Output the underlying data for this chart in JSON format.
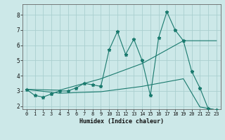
{
  "xlabel": "Humidex (Indice chaleur)",
  "bg_color": "#cce8e8",
  "line_color": "#1a7a6e",
  "grid_color": "#aacfcf",
  "xlim": [
    -0.5,
    23.5
  ],
  "ylim": [
    1.8,
    8.7
  ],
  "yticks": [
    2,
    3,
    4,
    5,
    6,
    7,
    8
  ],
  "xticks": [
    0,
    1,
    2,
    3,
    4,
    5,
    6,
    7,
    8,
    9,
    10,
    11,
    12,
    13,
    14,
    15,
    16,
    17,
    18,
    19,
    20,
    21,
    22,
    23
  ],
  "series0_x": [
    0,
    1,
    2,
    3,
    4,
    5,
    6,
    7,
    8,
    9,
    10,
    11,
    12,
    13,
    14,
    15,
    16,
    17,
    18,
    19,
    20,
    21,
    22,
    23
  ],
  "series0_y": [
    3.1,
    2.7,
    2.6,
    2.8,
    3.0,
    3.0,
    3.2,
    3.5,
    3.4,
    3.3,
    5.7,
    6.9,
    5.4,
    6.4,
    5.0,
    2.7,
    6.5,
    8.2,
    7.0,
    6.3,
    4.3,
    3.2,
    1.85,
    1.75
  ],
  "series1_x": [
    0,
    4,
    9,
    14,
    19,
    21,
    23
  ],
  "series1_y": [
    3.1,
    3.05,
    3.8,
    4.8,
    6.3,
    6.3,
    6.3
  ],
  "series2_x": [
    0,
    4,
    9,
    14,
    19,
    21,
    23
  ],
  "series2_y": [
    3.1,
    2.85,
    2.95,
    3.3,
    3.8,
    1.95,
    1.75
  ],
  "xlabel_fontsize": 6.0,
  "tick_fontsize_x": 5.0,
  "tick_fontsize_y": 5.5
}
